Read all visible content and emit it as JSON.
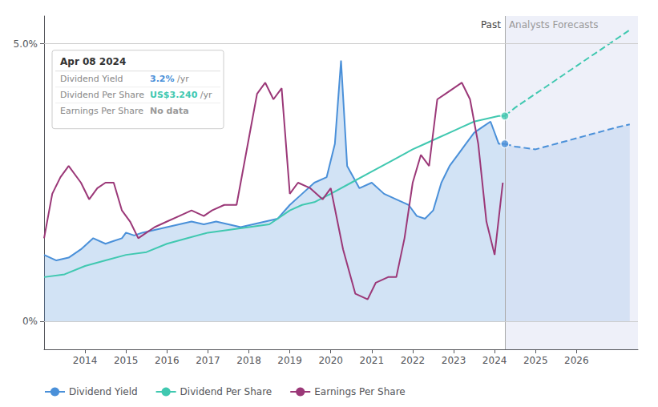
{
  "chart_data": {
    "type": "line",
    "xlim": [
      2013.0,
      2027.5
    ],
    "ylim": [
      -0.5,
      5.5
    ],
    "xticks": [
      2014,
      2015,
      2016,
      2017,
      2018,
      2019,
      2020,
      2021,
      2022,
      2023,
      2024,
      2025,
      2026
    ],
    "yticks": [
      {
        "value": 0.0,
        "label": "0%"
      },
      {
        "value": 5.0,
        "label": "5.0%"
      }
    ],
    "grid": true,
    "legend": "lower left",
    "divider_x": 2024.25,
    "past_label": "Past",
    "forecast_label": "Analysts Forecasts",
    "series": [
      {
        "name": "Dividend Yield",
        "type": "area",
        "color": "#4a90d9",
        "line_style": "solid",
        "x": [
          2013.0,
          2013.3,
          2013.6,
          2013.9,
          2014.2,
          2014.5,
          2014.7,
          2014.9,
          2015.0,
          2015.2,
          2015.4,
          2015.7,
          2016.0,
          2016.3,
          2016.6,
          2016.9,
          2017.2,
          2017.5,
          2017.8,
          2018.1,
          2018.4,
          2018.7,
          2019.0,
          2019.3,
          2019.6,
          2019.9,
          2020.1,
          2020.25,
          2020.4,
          2020.7,
          2021.0,
          2021.3,
          2021.6,
          2021.9,
          2022.1,
          2022.3,
          2022.5,
          2022.7,
          2022.9,
          2023.1,
          2023.3,
          2023.5,
          2023.7,
          2023.9,
          2024.1,
          2024.25
        ],
        "values": [
          1.2,
          1.1,
          1.15,
          1.3,
          1.5,
          1.4,
          1.45,
          1.5,
          1.6,
          1.55,
          1.6,
          1.65,
          1.7,
          1.75,
          1.8,
          1.75,
          1.8,
          1.75,
          1.7,
          1.75,
          1.8,
          1.85,
          2.1,
          2.3,
          2.5,
          2.6,
          3.2,
          4.7,
          2.8,
          2.4,
          2.5,
          2.3,
          2.2,
          2.1,
          1.9,
          1.85,
          2.0,
          2.5,
          2.8,
          3.0,
          3.2,
          3.4,
          3.5,
          3.6,
          3.2,
          3.2
        ]
      },
      {
        "name": "Dividend Yield",
        "type": "area",
        "color": "#4a90d9",
        "line_style": "dashed",
        "x": [
          2024.25,
          2024.5,
          2025.0,
          2025.5,
          2026.0,
          2026.5,
          2027.0,
          2027.3
        ],
        "values": [
          3.2,
          3.15,
          3.1,
          3.2,
          3.3,
          3.4,
          3.5,
          3.55
        ]
      },
      {
        "name": "Dividend Per Share",
        "type": "line",
        "color": "#40c8b0",
        "line_style": "solid",
        "x": [
          2013.0,
          2013.5,
          2014.0,
          2014.5,
          2015.0,
          2015.5,
          2016.0,
          2016.5,
          2017.0,
          2017.5,
          2018.0,
          2018.5,
          2019.0,
          2019.3,
          2019.6,
          2020.0,
          2020.5,
          2021.0,
          2021.5,
          2022.0,
          2022.3,
          2022.6,
          2022.9,
          2023.2,
          2023.5,
          2023.8,
          2024.1,
          2024.25
        ],
        "values": [
          0.8,
          0.85,
          1.0,
          1.1,
          1.2,
          1.25,
          1.4,
          1.5,
          1.6,
          1.65,
          1.7,
          1.75,
          2.0,
          2.1,
          2.15,
          2.3,
          2.5,
          2.7,
          2.9,
          3.1,
          3.2,
          3.3,
          3.4,
          3.5,
          3.6,
          3.65,
          3.7,
          3.7
        ]
      },
      {
        "name": "Dividend Per Share",
        "type": "line",
        "color": "#40c8b0",
        "line_style": "dashed",
        "x": [
          2024.25,
          2024.5,
          2025.0,
          2025.5,
          2026.0,
          2026.5,
          2027.0,
          2027.3
        ],
        "values": [
          3.7,
          3.85,
          4.1,
          4.35,
          4.6,
          4.85,
          5.1,
          5.25
        ]
      },
      {
        "name": "Earnings Per Share",
        "type": "line",
        "color": "#9b3878",
        "line_style": "solid",
        "x": [
          2013.0,
          2013.2,
          2013.4,
          2013.6,
          2013.9,
          2014.1,
          2014.3,
          2014.5,
          2014.7,
          2014.9,
          2015.1,
          2015.3,
          2015.5,
          2015.7,
          2016.0,
          2016.3,
          2016.6,
          2016.9,
          2017.1,
          2017.4,
          2017.7,
          2018.0,
          2018.2,
          2018.4,
          2018.6,
          2018.8,
          2019.0,
          2019.2,
          2019.5,
          2019.8,
          2020.0,
          2020.3,
          2020.6,
          2020.9,
          2021.1,
          2021.4,
          2021.6,
          2021.8,
          2022.0,
          2022.2,
          2022.4,
          2022.6,
          2022.8,
          2023.0,
          2023.2,
          2023.4,
          2023.6,
          2023.8,
          2024.0,
          2024.2
        ],
        "values": [
          1.5,
          2.3,
          2.6,
          2.8,
          2.5,
          2.2,
          2.4,
          2.5,
          2.5,
          2.0,
          1.8,
          1.5,
          1.6,
          1.7,
          1.8,
          1.9,
          2.0,
          1.9,
          2.0,
          2.1,
          2.1,
          3.3,
          4.1,
          4.3,
          4.0,
          4.2,
          2.3,
          2.5,
          2.4,
          2.2,
          2.4,
          1.3,
          0.5,
          0.4,
          0.7,
          0.8,
          0.8,
          1.5,
          2.5,
          3.0,
          2.8,
          4.0,
          4.1,
          4.2,
          4.3,
          4.0,
          3.2,
          1.8,
          1.2,
          2.5
        ]
      },
      {
        "name": "Dividend Yield",
        "type": "scatter",
        "color": "#4a90d9",
        "marker": "circle",
        "x": [
          2024.25
        ],
        "values": [
          3.2
        ]
      },
      {
        "name": "Dividend Per Share",
        "type": "scatter",
        "color": "#40c8b0",
        "marker": "circle",
        "x": [
          2024.25
        ],
        "values": [
          3.7
        ]
      }
    ],
    "annotation": {
      "title": "Apr 08 2024",
      "rows": [
        {
          "label": "Dividend Yield",
          "value": "3.2%",
          "suffix": "/yr",
          "color": "#4a90d9"
        },
        {
          "label": "Dividend Per Share",
          "value": "US$3.240",
          "suffix": "/yr",
          "color": "#40c8b0"
        },
        {
          "label": "Earnings Per Share",
          "value": "No data",
          "color": "#999999"
        }
      ]
    }
  }
}
